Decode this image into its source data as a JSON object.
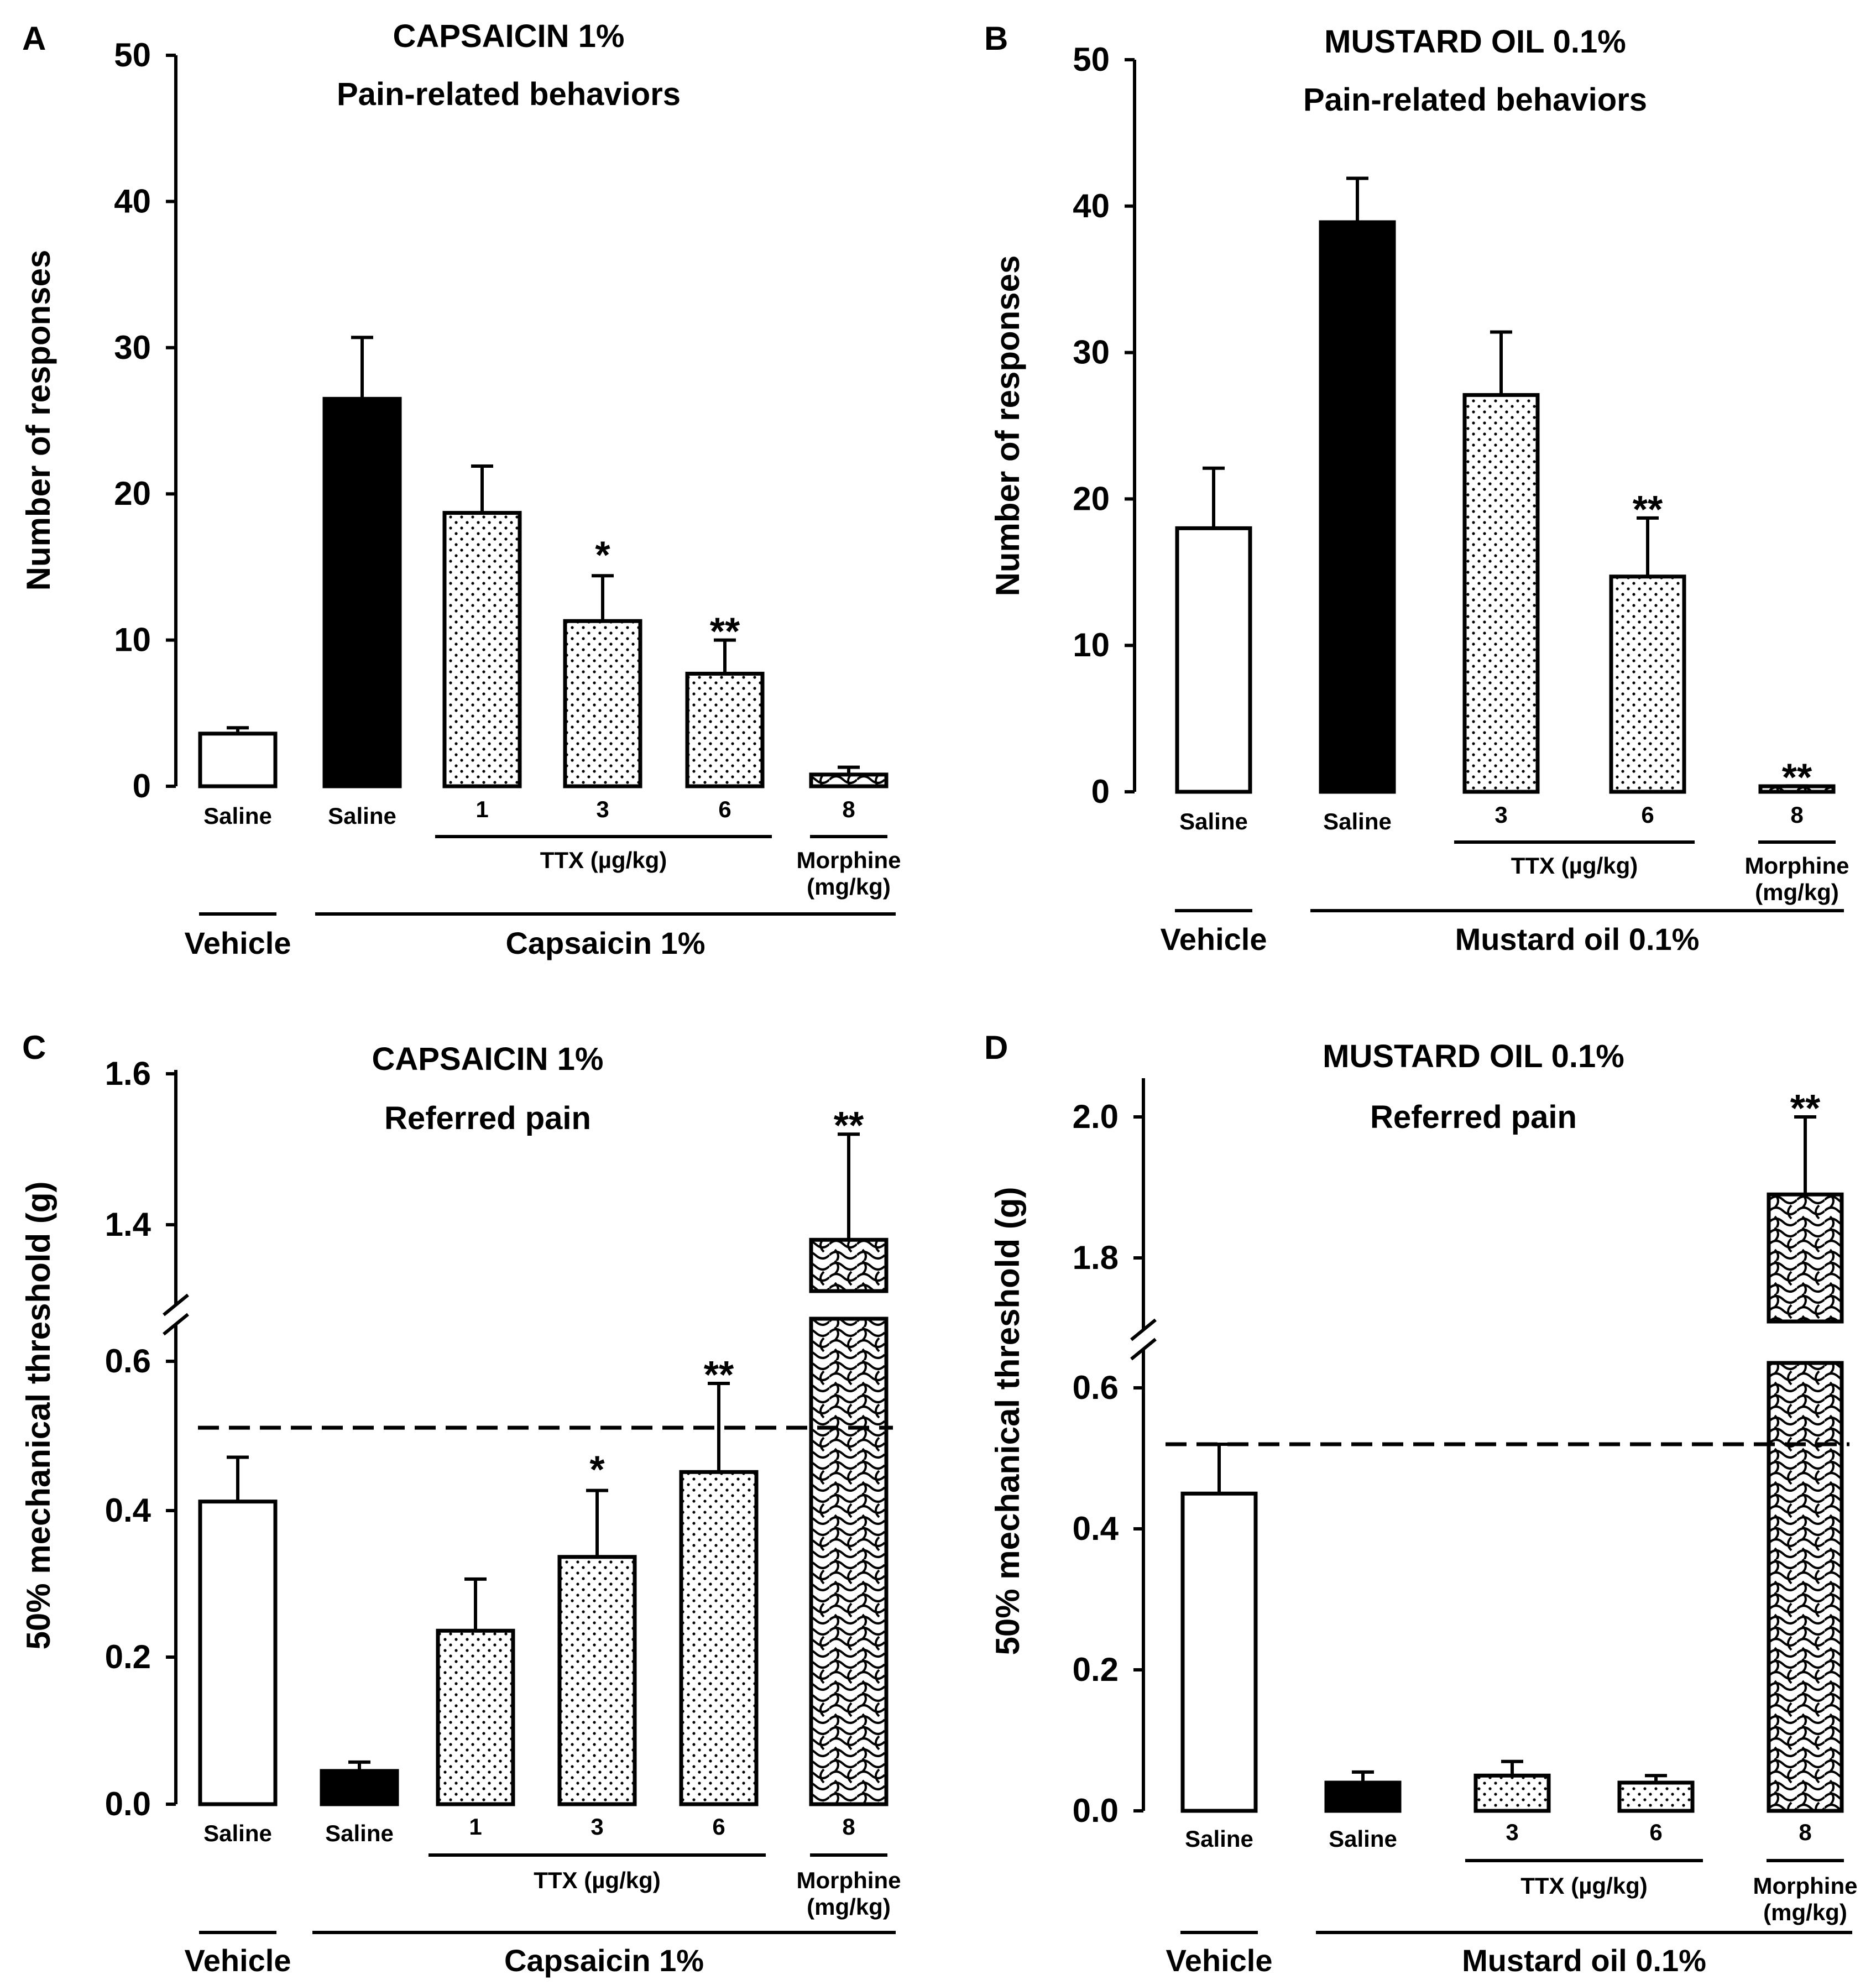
{
  "colors": {
    "ink": "#000000",
    "paper": "#ffffff"
  },
  "chart_data": [
    {
      "panel": "A",
      "type": "bar",
      "title": "CAPSAICIN 1%",
      "subtitle": "Pain-related behaviors",
      "ylabel": "Number of responses",
      "ylim": [
        0,
        50
      ],
      "yticks": [
        0,
        10,
        20,
        30,
        40,
        50
      ],
      "categories": [
        "Saline",
        "Saline",
        "1",
        "3",
        "6",
        "8"
      ],
      "fills": [
        "white",
        "black",
        "dots",
        "dots",
        "dots",
        "wave"
      ],
      "values": [
        3.6,
        26.5,
        18.7,
        11.3,
        7.7,
        0.8
      ],
      "errors": [
        0.4,
        4.2,
        3.2,
        3.1,
        2.3,
        0.5
      ],
      "significance": [
        "",
        "",
        "",
        "*",
        "**",
        ""
      ],
      "groups": [
        {
          "label": "TTX (µg/kg)",
          "from": 2,
          "to": 4,
          "level": 1
        },
        {
          "label": "Morphine\n(mg/kg)",
          "from": 5,
          "to": 5,
          "level": 1
        },
        {
          "label": "Vehicle",
          "from": 0,
          "to": 0,
          "level": 2
        },
        {
          "label": "Capsaicin 1%",
          "from": 1,
          "to": 5,
          "level": 2
        }
      ]
    },
    {
      "panel": "B",
      "type": "bar",
      "title": "MUSTARD OIL 0.1%",
      "subtitle": "Pain-related behaviors",
      "ylabel": "Number of responses",
      "ylim": [
        0,
        50
      ],
      "yticks": [
        0,
        10,
        20,
        30,
        40,
        50
      ],
      "categories": [
        "Saline",
        "Saline",
        "3",
        "6",
        "8"
      ],
      "fills": [
        "white",
        "black",
        "dots",
        "dots",
        "wave"
      ],
      "values": [
        18,
        38.9,
        27.1,
        14.7,
        0.2
      ],
      "errors": [
        4.1,
        3.0,
        4.3,
        4.0,
        0.2
      ],
      "significance": [
        "",
        "",
        "",
        "**",
        "**"
      ],
      "groups": [
        {
          "label": "TTX (µg/kg)",
          "from": 2,
          "to": 3,
          "level": 1
        },
        {
          "label": "Morphine\n(mg/kg)",
          "from": 4,
          "to": 4,
          "level": 1
        },
        {
          "label": "Vehicle",
          "from": 0,
          "to": 0,
          "level": 2
        },
        {
          "label": "Mustard oil 0.1%",
          "from": 1,
          "to": 4,
          "level": 2
        }
      ]
    },
    {
      "panel": "C",
      "type": "bar",
      "title": "CAPSAICIN 1%",
      "subtitle": "Referred pain",
      "ylabel": "50% mechanical threshold (g)",
      "ylim": [
        0,
        1.6
      ],
      "axis_break": [
        0.65,
        1.3
      ],
      "yticks": [
        0.0,
        0.2,
        0.4,
        0.6,
        1.4,
        1.6
      ],
      "ytick_labels": [
        "0.0",
        "0.2",
        "0.4",
        "0.6",
        "1.4",
        "1.6"
      ],
      "categories": [
        "Saline",
        "Saline",
        "1",
        "3",
        "6",
        "8"
      ],
      "fills": [
        "white",
        "black",
        "dots",
        "dots",
        "dots",
        "wave"
      ],
      "values": [
        0.41,
        0.045,
        0.235,
        0.335,
        0.45,
        1.38
      ],
      "errors": [
        0.06,
        0.012,
        0.07,
        0.09,
        0.12,
        0.14
      ],
      "significance": [
        "",
        "",
        "",
        "*",
        "**",
        "**"
      ],
      "baseline": 0.51,
      "groups": [
        {
          "label": "TTX (µg/kg)",
          "from": 2,
          "to": 4,
          "level": 1
        },
        {
          "label": "Morphine\n(mg/kg)",
          "from": 5,
          "to": 5,
          "level": 1
        },
        {
          "label": "Vehicle",
          "from": 0,
          "to": 0,
          "level": 2
        },
        {
          "label": "Capsaicin 1%",
          "from": 1,
          "to": 5,
          "level": 2
        }
      ]
    },
    {
      "panel": "D",
      "type": "bar",
      "title": "MUSTARD OIL 0.1%",
      "subtitle": "Referred pain",
      "ylabel": "50% mechanical threshold (g)",
      "ylim": [
        0,
        2.0
      ],
      "axis_break": [
        0.66,
        1.7
      ],
      "yticks": [
        0.0,
        0.2,
        0.4,
        0.6,
        1.8,
        2.0
      ],
      "ytick_labels": [
        "0.0",
        "0.2",
        "0.4",
        "0.6",
        "1.8",
        "2.0"
      ],
      "categories": [
        "Saline",
        "Saline",
        "3",
        "6",
        "8"
      ],
      "fills": [
        "white",
        "black",
        "dots",
        "dots",
        "wave"
      ],
      "values": [
        0.45,
        0.04,
        0.05,
        0.04,
        1.89
      ],
      "errors": [
        0.07,
        0.015,
        0.02,
        0.01,
        0.11
      ],
      "significance": [
        "",
        "",
        "",
        "",
        "**"
      ],
      "baseline": 0.52,
      "groups": [
        {
          "label": "TTX (µg/kg)",
          "from": 2,
          "to": 3,
          "level": 1
        },
        {
          "label": "Morphine\n(mg/kg)",
          "from": 4,
          "to": 4,
          "level": 1
        },
        {
          "label": "Vehicle",
          "from": 0,
          "to": 0,
          "level": 2
        },
        {
          "label": "Mustard oil 0.1%",
          "from": 1,
          "to": 4,
          "level": 2
        }
      ]
    }
  ]
}
